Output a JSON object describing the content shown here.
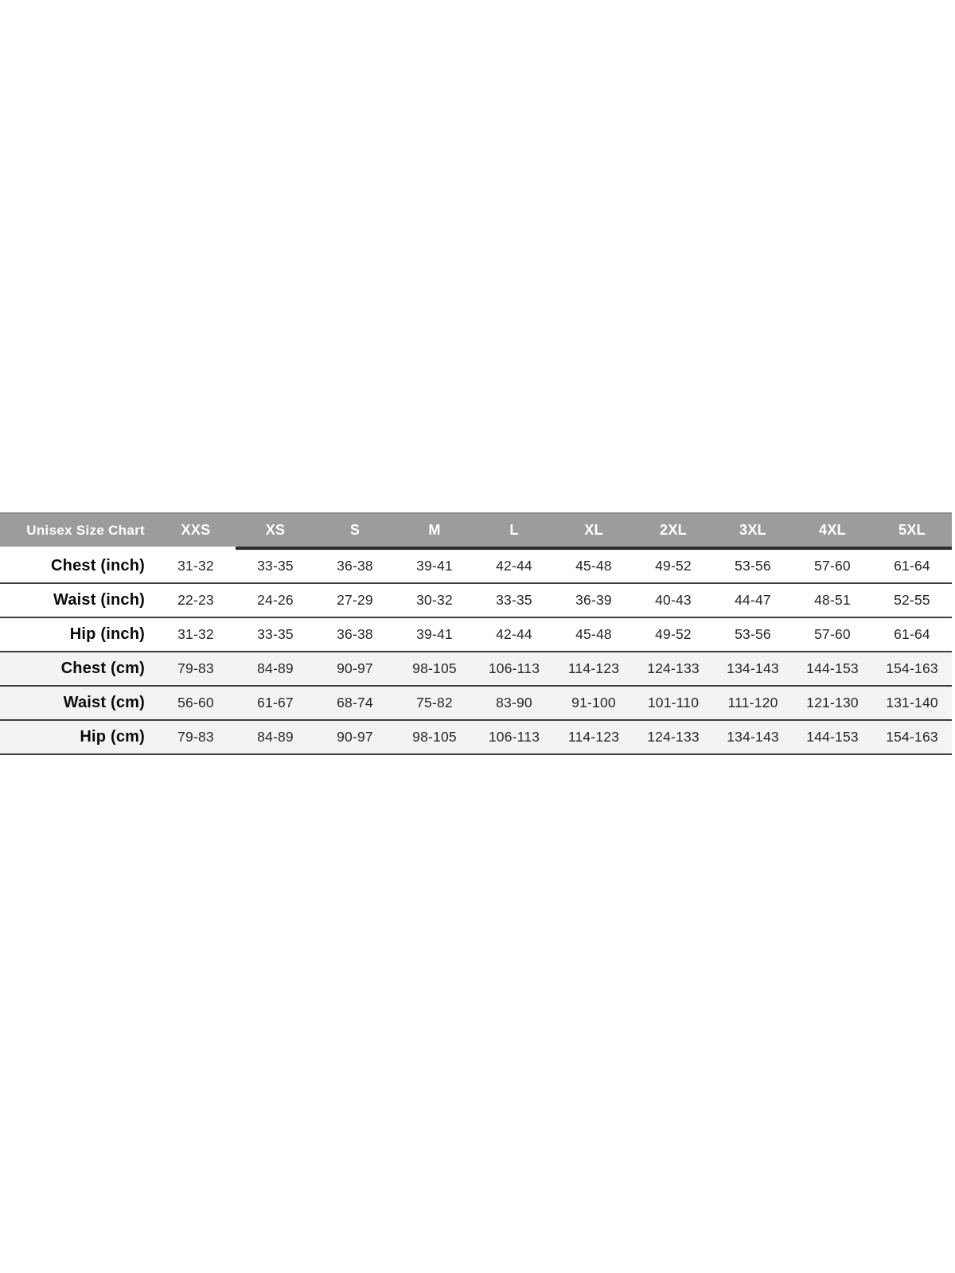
{
  "chart_data": {
    "type": "table",
    "title": "Unisex Size Chart",
    "columns": [
      "XXS",
      "XS",
      "S",
      "M",
      "L",
      "XL",
      "2XL",
      "3XL",
      "4XL",
      "5XL"
    ],
    "rows": [
      {
        "label": "Chest (inch)",
        "unit": "inch",
        "values": [
          "31-32",
          "33-35",
          "36-38",
          "39-41",
          "42-44",
          "45-48",
          "49-52",
          "53-56",
          "57-60",
          "61-64"
        ]
      },
      {
        "label": "Waist (inch)",
        "unit": "inch",
        "values": [
          "22-23",
          "24-26",
          "27-29",
          "30-32",
          "33-35",
          "36-39",
          "40-43",
          "44-47",
          "48-51",
          "52-55"
        ]
      },
      {
        "label": "Hip (inch)",
        "unit": "inch",
        "values": [
          "31-32",
          "33-35",
          "36-38",
          "39-41",
          "42-44",
          "45-48",
          "49-52",
          "53-56",
          "57-60",
          "61-64"
        ]
      },
      {
        "label": "Chest (cm)",
        "unit": "cm",
        "values": [
          "79-83",
          "84-89",
          "90-97",
          "98-105",
          "106-113",
          "114-123",
          "124-133",
          "134-143",
          "144-153",
          "154-163"
        ]
      },
      {
        "label": "Waist (cm)",
        "unit": "cm",
        "values": [
          "56-60",
          "61-67",
          "68-74",
          "75-82",
          "83-90",
          "91-100",
          "101-110",
          "111-120",
          "121-130",
          "131-140"
        ]
      },
      {
        "label": "Hip (cm)",
        "unit": "cm",
        "values": [
          "79-83",
          "84-89",
          "90-97",
          "98-105",
          "106-113",
          "114-123",
          "124-133",
          "134-143",
          "144-153",
          "154-163"
        ]
      }
    ],
    "layout": {
      "legend_position": "none",
      "grid": "horizontal-rules",
      "header_underline_starts_at_column": "XS",
      "alternating_groups": "cm rows shaded"
    },
    "colors": {
      "header_bg": "#9c9c9c",
      "header_text": "#ffffff",
      "header_underline": "#2d2d2d",
      "cm_row_bg": "#f3f3f3",
      "row_border": "#3e3e3e",
      "label_text": "#0a0a0a",
      "value_text": "#262626"
    }
  }
}
